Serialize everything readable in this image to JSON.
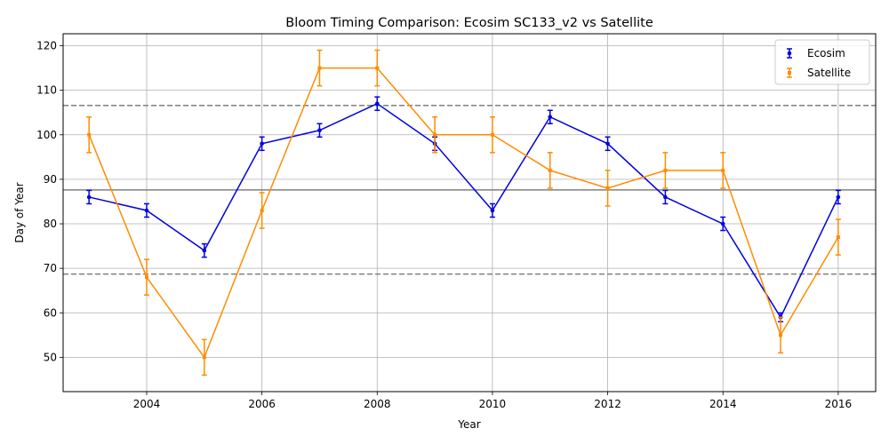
{
  "chart_data": {
    "type": "line",
    "title": "Bloom Timing Comparison: Ecosim SC133_v2 vs Satellite",
    "xlabel": "Year",
    "ylabel": "Day of Year",
    "xlim": [
      2002.55,
      2016.65
    ],
    "ylim": [
      42.3,
      122.7
    ],
    "xticks": [
      2004,
      2006,
      2008,
      2010,
      2012,
      2014,
      2016
    ],
    "yticks": [
      50,
      60,
      70,
      80,
      90,
      100,
      110,
      120
    ],
    "grid": true,
    "legend_position": "top-right",
    "reference_lines": [
      {
        "y": 87.6,
        "style": "solid",
        "color": "#808080"
      },
      {
        "y": 106.6,
        "style": "dashed",
        "color": "#808080"
      },
      {
        "y": 68.7,
        "style": "dashed",
        "color": "#808080"
      }
    ],
    "series": [
      {
        "name": "Ecosim",
        "color": "#0000e0",
        "marker": "circle",
        "x": [
          2003,
          2004,
          2005,
          2006,
          2007,
          2008,
          2009,
          2010,
          2011,
          2012,
          2013,
          2014,
          2015,
          2016
        ],
        "y": [
          86,
          83,
          74,
          98,
          101,
          107,
          98,
          83,
          104,
          98,
          86,
          80,
          59,
          86
        ],
        "error": [
          1.5,
          1.5,
          1.5,
          1.5,
          1.5,
          1.5,
          1.5,
          1.5,
          1.5,
          1.5,
          1.5,
          1.5,
          1.0,
          1.5
        ]
      },
      {
        "name": "Satellite",
        "color": "#ff8c00",
        "marker": "square",
        "x": [
          2003,
          2004,
          2005,
          2006,
          2007,
          2008,
          2009,
          2010,
          2011,
          2012,
          2013,
          2014,
          2015,
          2016
        ],
        "y": [
          100,
          68,
          50,
          83,
          115,
          115,
          100,
          100,
          92,
          88,
          92,
          92,
          55,
          77
        ],
        "error": [
          4,
          4,
          4,
          4,
          4,
          4,
          4,
          4,
          4,
          4,
          4,
          4,
          4,
          4
        ]
      }
    ]
  }
}
